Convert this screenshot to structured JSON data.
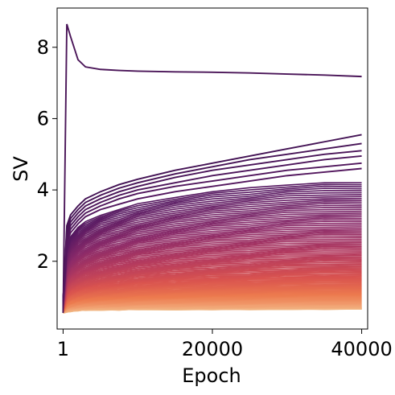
{
  "chart_data": {
    "type": "line",
    "title": "",
    "xlabel": "Epoch",
    "ylabel": "SV",
    "xlim": [
      -800,
      40800
    ],
    "ylim": [
      0.1,
      9.1
    ],
    "x_ticks": [
      1,
      20000,
      40000
    ],
    "x_tick_labels": [
      "1",
      "20000",
      "40000"
    ],
    "y_ticks": [
      2,
      4,
      6,
      8
    ],
    "y_tick_labels": [
      "2",
      "4",
      "6",
      "8"
    ],
    "grid": false,
    "legend": "none",
    "colormap": "magma-like (dark purple for largest singular values, light orange for smallest)",
    "color_stops": [
      "#3b0f4f",
      "#5a1a63",
      "#8a2a69",
      "#b53b5e",
      "#d9534f",
      "#ec7a4e",
      "#f1a273",
      "#f2c08d"
    ],
    "x": [
      1,
      500,
      1000,
      2000,
      3000,
      5000,
      7500,
      10000,
      15000,
      20000,
      25000,
      30000,
      35000,
      40000
    ],
    "series_count": 120,
    "top_series": [
      {
        "values": [
          0.55,
          8.65,
          8.3,
          7.65,
          7.45,
          7.38,
          7.35,
          7.33,
          7.31,
          7.3,
          7.28,
          7.25,
          7.22,
          7.18
        ]
      },
      {
        "values": [
          0.9,
          3.0,
          3.3,
          3.55,
          3.75,
          3.95,
          4.15,
          4.3,
          4.55,
          4.75,
          4.95,
          5.15,
          5.35,
          5.55
        ]
      },
      {
        "values": [
          0.9,
          2.9,
          3.2,
          3.45,
          3.65,
          3.85,
          4.05,
          4.2,
          4.45,
          4.65,
          4.85,
          5.0,
          5.15,
          5.3
        ]
      },
      {
        "values": [
          0.9,
          2.8,
          3.1,
          3.35,
          3.55,
          3.75,
          3.95,
          4.1,
          4.35,
          4.55,
          4.7,
          4.85,
          5.0,
          5.1
        ]
      },
      {
        "values": [
          0.9,
          2.7,
          3.0,
          3.25,
          3.45,
          3.65,
          3.85,
          4.0,
          4.2,
          4.4,
          4.55,
          4.7,
          4.85,
          4.95
        ]
      },
      {
        "values": [
          0.9,
          2.6,
          2.9,
          3.15,
          3.35,
          3.55,
          3.75,
          3.9,
          4.1,
          4.25,
          4.4,
          4.55,
          4.65,
          4.75
        ]
      },
      {
        "values": [
          0.9,
          2.5,
          2.8,
          3.05,
          3.25,
          3.45,
          3.6,
          3.75,
          3.95,
          4.1,
          4.25,
          4.4,
          4.5,
          4.6
        ]
      }
    ],
    "bulk_envelope": {
      "upper": [
        0.9,
        2.4,
        2.7,
        2.95,
        3.1,
        3.3,
        3.45,
        3.6,
        3.8,
        3.95,
        4.05,
        4.15,
        4.2,
        4.2
      ],
      "lower": [
        0.55,
        0.58,
        0.6,
        0.62,
        0.63,
        0.64,
        0.64,
        0.65,
        0.65,
        0.65,
        0.65,
        0.66,
        0.66,
        0.66
      ]
    }
  }
}
